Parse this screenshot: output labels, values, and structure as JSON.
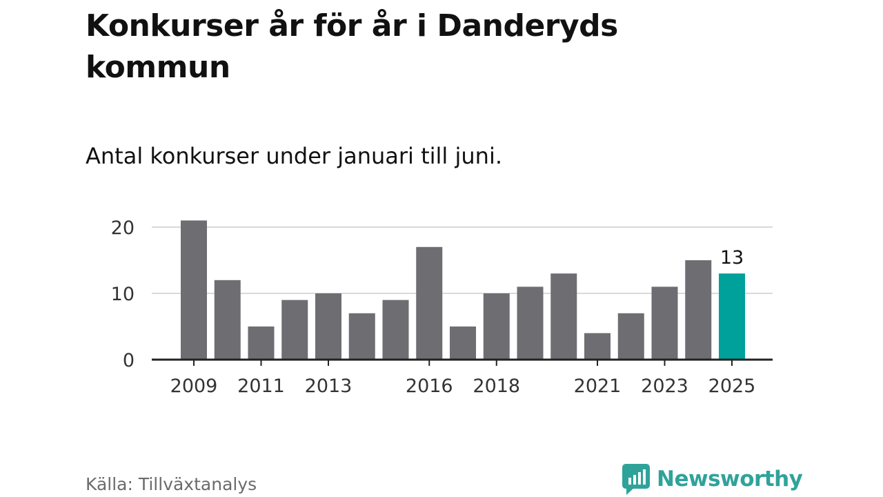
{
  "header": {
    "title": "Konkurser år för år i Danderyds kommun",
    "subtitle": "Antal konkurser under januari till juni."
  },
  "footer": {
    "source": "Källa: Tillväxtanalys",
    "brand": "Newsworthy"
  },
  "colors": {
    "bar": "#6e6d72",
    "highlight": "#00a19a",
    "grid": "#d9d9d9",
    "axis": "#222222",
    "brand": "#2fa39a"
  },
  "chart_data": {
    "type": "bar",
    "categories": [
      "2009",
      "2010",
      "2011",
      "2012",
      "2013",
      "2014",
      "2015",
      "2016",
      "2017",
      "2018",
      "2019",
      "2020",
      "2021",
      "2022",
      "2023",
      "2024",
      "2025"
    ],
    "values": [
      21,
      12,
      5,
      9,
      10,
      7,
      9,
      17,
      5,
      10,
      11,
      13,
      4,
      7,
      11,
      15,
      13
    ],
    "x_tick_labels": [
      "2009",
      "2011",
      "2013",
      "2016",
      "2018",
      "2021",
      "2023",
      "2025"
    ],
    "y_ticks": [
      0,
      10,
      20
    ],
    "ylim": [
      0,
      21
    ],
    "highlight_category": "2025",
    "data_labels": [
      {
        "category": "2025",
        "label": "13"
      }
    ],
    "grid": true,
    "title": "Konkurser år för år i Danderyds kommun",
    "subtitle": "Antal konkurser under januari till juni.",
    "xlabel": "",
    "ylabel": ""
  }
}
